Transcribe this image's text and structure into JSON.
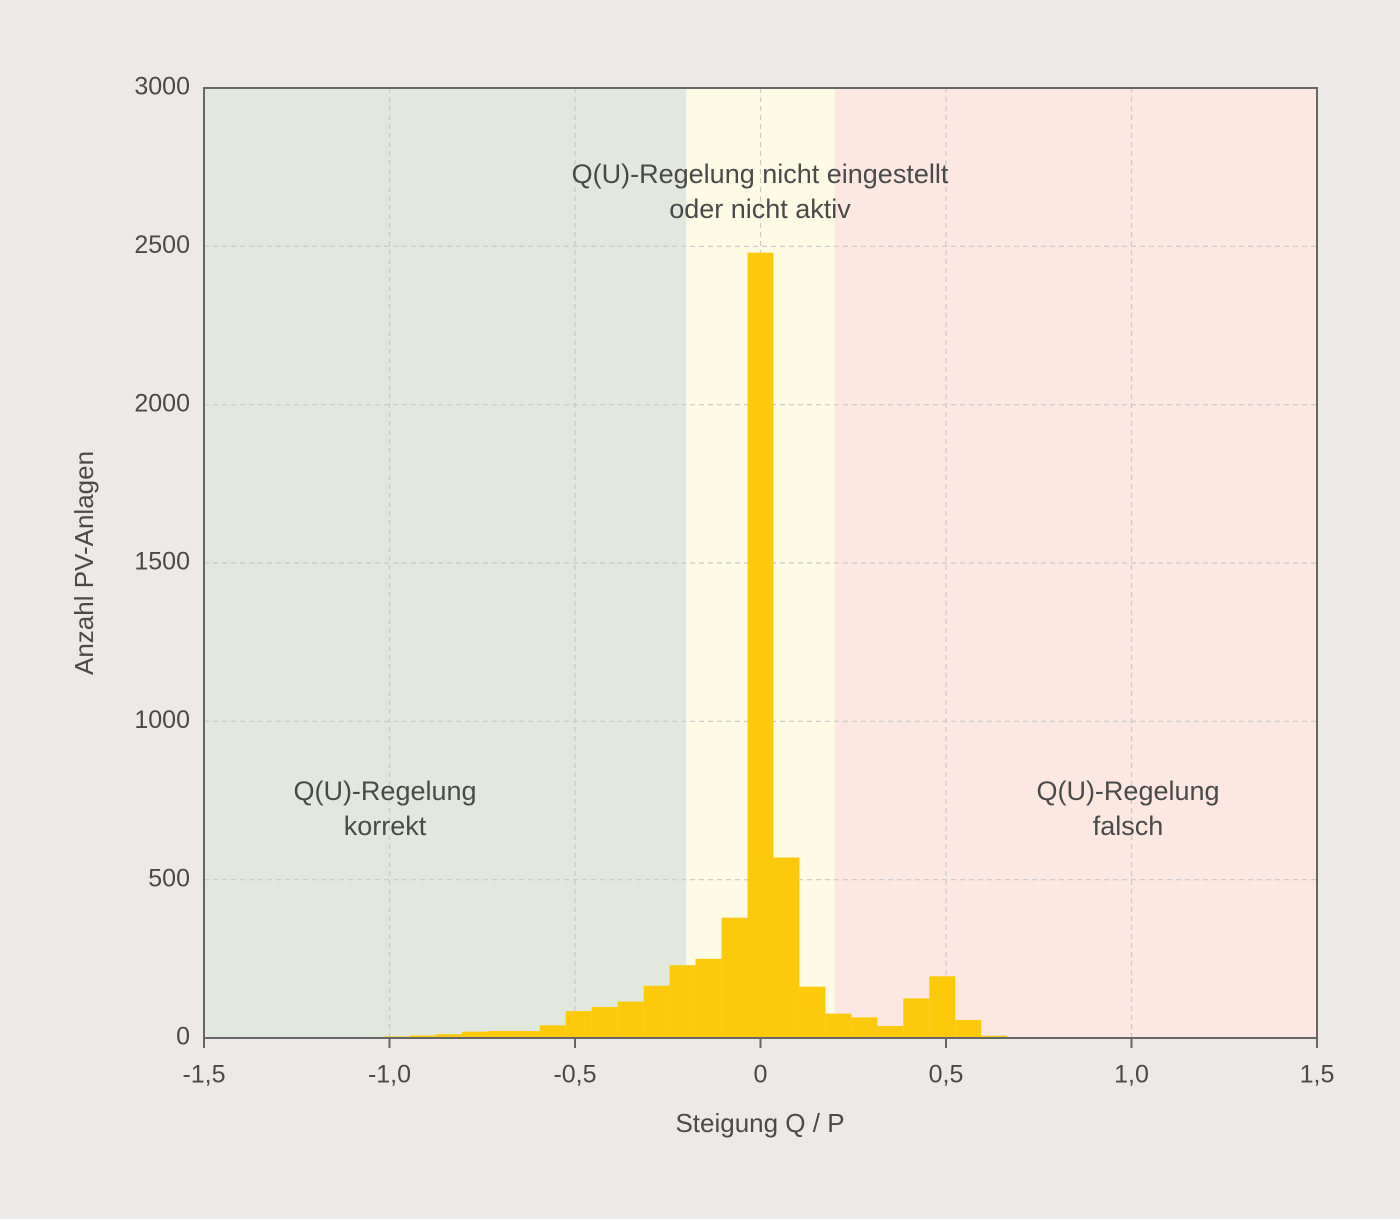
{
  "chart_data": {
    "type": "histogram",
    "x_label": "Steigung Q / P",
    "y_label": "Anzahl PV-Anlagen",
    "bins": [
      -1.015,
      -0.945,
      -0.875,
      -0.805,
      -0.735,
      -0.665,
      -0.595,
      -0.525,
      -0.455,
      -0.385,
      -0.315,
      -0.245,
      -0.175,
      -0.105,
      -0.035,
      0.035,
      0.105,
      0.175,
      0.245,
      0.315,
      0.385,
      0.455,
      0.525,
      0.595,
      0.665,
      0.735
    ],
    "values": [
      5,
      8,
      12,
      20,
      22,
      22,
      40,
      85,
      98,
      115,
      165,
      230,
      250,
      380,
      2480,
      570,
      162,
      77,
      65,
      38,
      125,
      195,
      57,
      7,
      3
    ],
    "color": "#fdca0b",
    "xlim": [
      -1.5,
      1.5
    ],
    "ylim": [
      0,
      3000
    ],
    "xticks": [
      {
        "value": -1.5,
        "label": "-1,5"
      },
      {
        "value": -1.0,
        "label": "-1,0"
      },
      {
        "value": -0.5,
        "label": "-0,5"
      },
      0,
      {
        "value": 0.5,
        "label": "0,5"
      },
      {
        "value": 1.0,
        "label": "1,0"
      },
      {
        "value": 1.5,
        "label": "1,5"
      }
    ],
    "yticks": [
      0,
      500,
      1000,
      1500,
      2000,
      2500,
      3000
    ],
    "grid": true,
    "regions": [
      {
        "from": -1.5,
        "to": -0.2,
        "color": "#e3e8de",
        "label": [
          "Q(U)-Regelung",
          "korrekt"
        ]
      },
      {
        "from": -0.2,
        "to": 0.2,
        "color": "#fdfbe4",
        "label": [
          "Q(U)-Regelung nicht eingestellt",
          "oder nicht aktiv"
        ]
      },
      {
        "from": 0.2,
        "to": 1.5,
        "color": "#fce8e0",
        "label": [
          "Q(U)-Regelung",
          "falsch"
        ]
      }
    ]
  }
}
